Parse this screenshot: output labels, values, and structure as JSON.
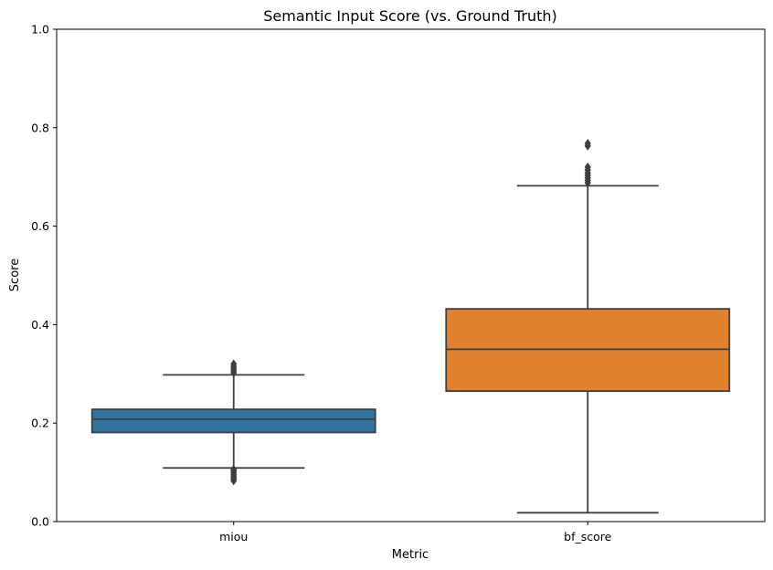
{
  "chart_data": {
    "type": "box",
    "title": "Semantic Input Score (vs. Ground Truth)",
    "xlabel": "Metric",
    "ylabel": "Score",
    "ylim": [
      0,
      1.0
    ],
    "yticks": [
      0.0,
      0.2,
      0.4,
      0.6,
      0.8,
      1.0
    ],
    "ytick_labels": [
      "0.0",
      "0.2",
      "0.4",
      "0.6",
      "0.8",
      "1.0"
    ],
    "grid": false,
    "categories": [
      "miou",
      "bf_score"
    ],
    "boxes": [
      {
        "category": "miou",
        "color": "#3274a1",
        "whisker_low": 0.109,
        "q1": 0.181,
        "median": 0.208,
        "q3": 0.228,
        "whisker_high": 0.298,
        "outliers": [
          0.083,
          0.087,
          0.091,
          0.095,
          0.099,
          0.103,
          0.106,
          0.302,
          0.306,
          0.31,
          0.315,
          0.32
        ]
      },
      {
        "category": "bf_score",
        "color": "#e1812c",
        "whisker_low": 0.018,
        "q1": 0.265,
        "median": 0.35,
        "q3": 0.432,
        "whisker_high": 0.682,
        "outliers": [
          0.688,
          0.693,
          0.698,
          0.703,
          0.708,
          0.714,
          0.72,
          0.763,
          0.768
        ]
      }
    ],
    "line_color": "#3f3f3f"
  }
}
